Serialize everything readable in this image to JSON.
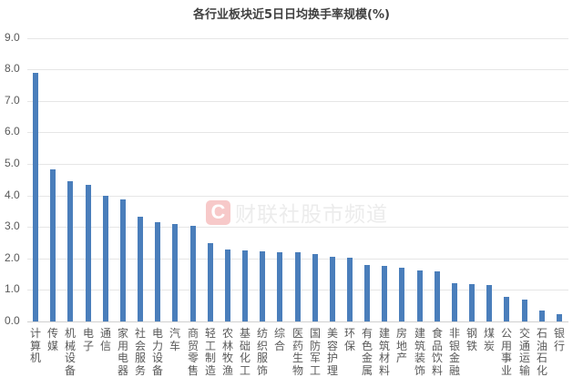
{
  "title": "各行业板块近5日日均换手率规模(%)",
  "watermark": {
    "icon": "C",
    "text": "财联社股市频道",
    "icon_color": "#f7c9c9"
  },
  "colors": {
    "bar": "#4a7ebb",
    "grid": "#e6e6e6",
    "text": "#595959"
  },
  "chart_data": {
    "type": "bar",
    "title": "各行业板块近5日日均换手率规模(%)",
    "xlabel": "",
    "ylabel": "",
    "ylim": [
      0,
      9
    ],
    "yticks": [
      "0.0",
      "1.0",
      "2.0",
      "3.0",
      "4.0",
      "5.0",
      "6.0",
      "7.0",
      "8.0",
      "9.0"
    ],
    "grid": true,
    "legend": null,
    "categories": [
      "计算机",
      "传媒",
      "机械设备",
      "电子",
      "通信",
      "家用电器",
      "社会服务",
      "电力设备",
      "汽车",
      "商贸零售",
      "轻工制造",
      "农林牧渔",
      "基础化工",
      "纺织服饰",
      "综合",
      "医药生物",
      "国防军工",
      "美容护理",
      "环保",
      "有色金属",
      "建筑材料",
      "房地产",
      "建筑装饰",
      "食品饮料",
      "非银金融",
      "钢铁",
      "煤炭",
      "公用事业",
      "交通运输",
      "石油石化",
      "银行"
    ],
    "values": [
      7.89,
      4.83,
      4.45,
      4.33,
      4.0,
      3.88,
      3.33,
      3.15,
      3.1,
      3.03,
      2.49,
      2.29,
      2.25,
      2.23,
      2.19,
      2.19,
      2.15,
      2.05,
      2.02,
      1.78,
      1.75,
      1.7,
      1.63,
      1.6,
      1.21,
      1.19,
      1.15,
      0.79,
      0.7,
      0.34,
      0.22
    ]
  }
}
